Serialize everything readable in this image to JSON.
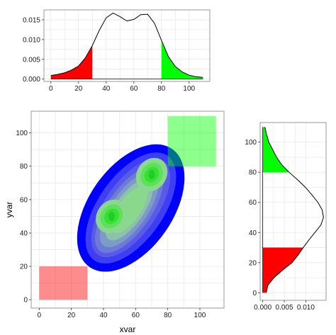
{
  "chart_data": [
    {
      "id": "top-density",
      "type": "area",
      "xlabel": "",
      "ylabel": "",
      "xlim": [
        -5,
        115
      ],
      "ylim": [
        -0.0006,
        0.0175
      ],
      "x_ticks": [
        0,
        20,
        40,
        60,
        80,
        100
      ],
      "x_tick_labels": [
        "0",
        "20",
        "40",
        "60",
        "80",
        "100"
      ],
      "y_ticks": [
        0.0,
        0.005,
        0.01,
        0.015
      ],
      "y_tick_labels": [
        "0.000",
        "0.005",
        "0.010",
        "0.015"
      ],
      "density_curve": {
        "x": [
          0,
          5,
          10,
          15,
          20,
          25,
          30,
          35,
          40,
          45,
          50,
          55,
          60,
          65,
          70,
          75,
          80,
          85,
          90,
          95,
          100,
          105,
          110
        ],
        "y": [
          0.0009,
          0.0012,
          0.0016,
          0.0023,
          0.0033,
          0.0054,
          0.0085,
          0.0123,
          0.0155,
          0.0167,
          0.0158,
          0.0147,
          0.0151,
          0.0163,
          0.0164,
          0.0141,
          0.0098,
          0.0057,
          0.0032,
          0.0018,
          0.001,
          0.0006,
          0.0004
        ]
      },
      "shaded_regions": [
        {
          "from": 0,
          "to": 30,
          "color": "#ff0000"
        },
        {
          "from": 80,
          "to": 110,
          "color": "#00ff00"
        }
      ]
    },
    {
      "id": "main-density-2d",
      "type": "heatmap",
      "xlabel": "xvar",
      "ylabel": "yvar",
      "xlim": [
        -5,
        115
      ],
      "ylim": [
        -5,
        113
      ],
      "x_ticks": [
        0,
        20,
        40,
        60,
        80,
        100
      ],
      "x_tick_labels": [
        "0",
        "20",
        "40",
        "60",
        "80",
        "100"
      ],
      "y_ticks": [
        0,
        20,
        40,
        60,
        80,
        100
      ],
      "y_tick_labels": [
        "0",
        "20",
        "40",
        "60",
        "80",
        "100"
      ],
      "contour_fill_colors": [
        "#0000ff",
        "#3e3ef4",
        "#5a5ae8",
        "#6c7ad8",
        "#7e9ac6",
        "#8ec0b0",
        "#8ad88e",
        "#5ee05a",
        "#33e033"
      ],
      "contour_levels": [
        {
          "cx": 57,
          "cy": 55,
          "r": 44,
          "angle": 55,
          "aspect": 0.58
        },
        {
          "cx": 57,
          "cy": 55,
          "r": 39,
          "angle": 55,
          "aspect": 0.51
        },
        {
          "cx": 57,
          "cy": 55,
          "r": 35,
          "angle": 55,
          "aspect": 0.46
        },
        {
          "cx": 56,
          "cy": 54,
          "r": 31,
          "angle": 55,
          "aspect": 0.43
        },
        {
          "cx": 56,
          "cy": 54,
          "r": 27,
          "angle": 55,
          "aspect": 0.41
        },
        {
          "cx": 56,
          "cy": 54,
          "r": 22,
          "angle": 55,
          "aspect": 0.4
        },
        {
          "cx": 56,
          "cy": 54,
          "r": 17,
          "angle": 55,
          "aspect": 0.4
        }
      ],
      "peaks": [
        {
          "x": 45,
          "y": 50,
          "color": "#33dd33"
        },
        {
          "x": 70,
          "y": 75,
          "color": "#33dd33"
        }
      ],
      "rectangles": [
        {
          "xmin": 0,
          "xmax": 30,
          "ymin": 0,
          "ymax": 20,
          "color": "#ff0000",
          "opacity": 0.45
        },
        {
          "xmin": 80,
          "xmax": 110,
          "ymin": 80,
          "ymax": 110,
          "color": "#00ff00",
          "opacity": 0.45
        }
      ]
    },
    {
      "id": "right-density",
      "type": "area",
      "orientation": "vertical",
      "xlabel": "",
      "ylabel": "",
      "xlim": [
        -0.0006,
        0.0147
      ],
      "ylim": [
        -5,
        113
      ],
      "x_ticks": [
        0.0,
        0.005,
        0.01
      ],
      "x_tick_labels": [
        "0.000",
        "0.005",
        "0.010"
      ],
      "y_ticks": [
        0,
        20,
        40,
        60,
        80,
        100
      ],
      "y_tick_labels": [
        "0",
        "20",
        "40",
        "60",
        "80",
        "100"
      ],
      "density_curve": {
        "y": [
          0,
          5,
          10,
          15,
          20,
          25,
          30,
          35,
          40,
          45,
          50,
          55,
          60,
          65,
          70,
          75,
          80,
          85,
          90,
          95,
          100,
          105,
          110
        ],
        "x": [
          0.0008,
          0.0012,
          0.0026,
          0.0046,
          0.0068,
          0.0082,
          0.0094,
          0.0107,
          0.0121,
          0.0135,
          0.0141,
          0.0138,
          0.0128,
          0.0114,
          0.0099,
          0.0081,
          0.0061,
          0.0044,
          0.0032,
          0.0023,
          0.0014,
          0.0009,
          0.0005
        ]
      },
      "shaded_regions": [
        {
          "from": 0,
          "to": 30,
          "color": "#ff0000"
        },
        {
          "from": 80,
          "to": 110,
          "color": "#00ff00"
        }
      ]
    }
  ]
}
